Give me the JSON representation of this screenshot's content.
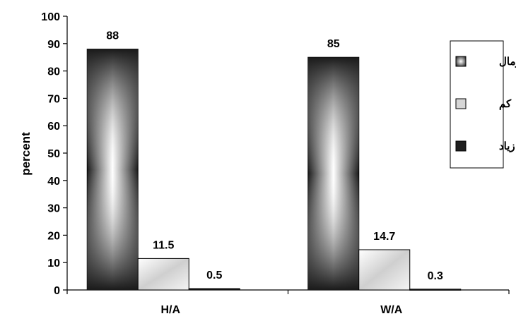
{
  "chart_data": {
    "type": "bar",
    "ylabel": "percent",
    "xlabel": "",
    "title": "",
    "ylim": [
      0,
      100
    ],
    "yticks": [
      0,
      10,
      20,
      30,
      40,
      50,
      60,
      70,
      80,
      90,
      100
    ],
    "categories": [
      "H/A",
      "W/A"
    ],
    "series": [
      {
        "name": "زیاد",
        "values": [
          88,
          85
        ],
        "color": "#1f1f1f",
        "fill_style": "dark-gradient"
      },
      {
        "name": "کم",
        "values": [
          11.5,
          14.7
        ],
        "color": "#d0d0d0",
        "fill_style": "light-gradient"
      },
      {
        "name": "نرمال",
        "values": [
          0.5,
          0.3
        ],
        "color": "#222222",
        "fill_style": "dark"
      }
    ],
    "data_labels": [
      [
        "88",
        "85"
      ],
      [
        "11.5",
        "14.7"
      ],
      [
        "0.5",
        "0.3"
      ]
    ],
    "legend": {
      "position": "right",
      "entries": [
        {
          "label": "نرمال",
          "swatch": "light-gradient"
        },
        {
          "label": "کم",
          "swatch": "light"
        },
        {
          "label": "زیاد",
          "swatch": "dark"
        }
      ]
    },
    "grid": false
  }
}
